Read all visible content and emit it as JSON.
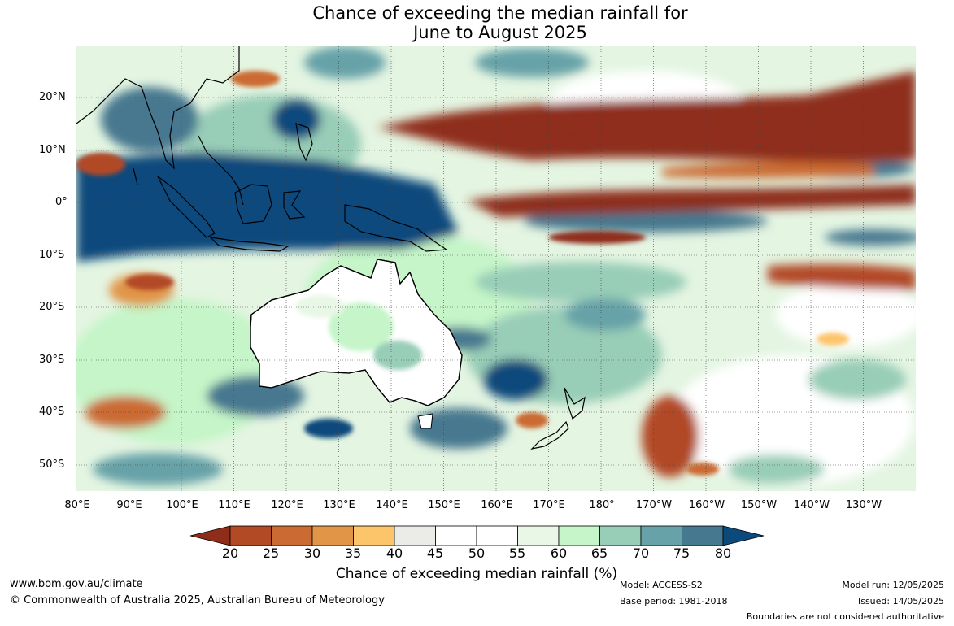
{
  "title": {
    "line1": "Chance of exceeding the median rainfall for",
    "line2": "June to August 2025"
  },
  "map": {
    "lat_labels": [
      "20°N",
      "10°N",
      "0°",
      "10°S",
      "20°S",
      "30°S",
      "40°S",
      "50°S"
    ],
    "lon_labels": [
      "80°E",
      "90°E",
      "100°E",
      "110°E",
      "120°E",
      "130°E",
      "140°E",
      "150°E",
      "160°E",
      "170°E",
      "180°",
      "170°W",
      "160°W",
      "150°W",
      "140°W",
      "130°W"
    ]
  },
  "colorbar": {
    "ticks": [
      "20",
      "25",
      "30",
      "35",
      "40",
      "45",
      "50",
      "55",
      "60",
      "65",
      "70",
      "75",
      "80"
    ],
    "colors": [
      "#8f2d1b",
      "#b24a25",
      "#cb6a33",
      "#e19547",
      "#fdc56a",
      "#ebebe7",
      "#ffffff",
      "#ffffff",
      "#e8f7e6",
      "#c5f5c8",
      "#98cdb7",
      "#66a2a8",
      "#46788f",
      "#0d4a7c"
    ],
    "label": "Chance of exceeding median rainfall (%)"
  },
  "footer": {
    "url": "www.bom.gov.au/climate",
    "copyright": "© Commonwealth of Australia 2025, Australian Bureau of Meteorology",
    "model": "Model: ACCESS-S2",
    "base_period": "Base period: 1981-2018",
    "model_run": "Model run: 12/05/2025",
    "issued": "Issued: 14/05/2025",
    "disclaimer": "Boundaries are not considered authoritative"
  }
}
